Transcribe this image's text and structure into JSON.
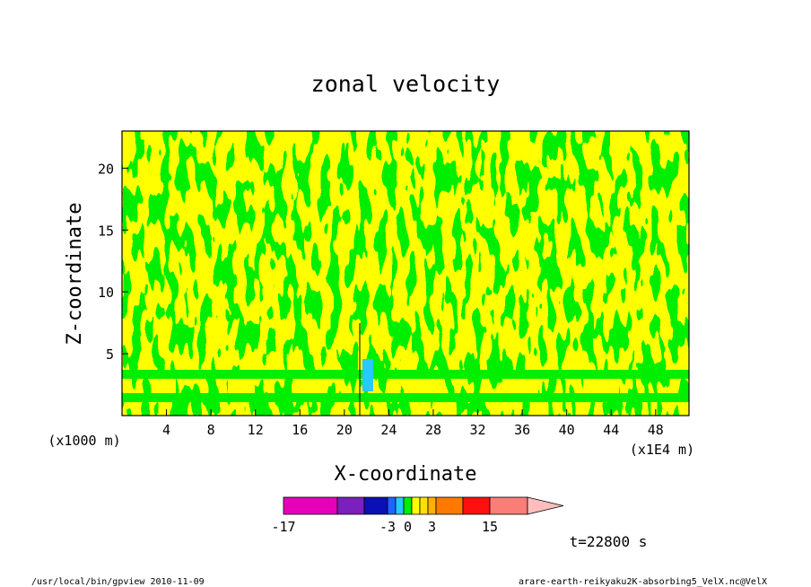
{
  "chart_data": {
    "type": "heatmap",
    "title": "zonal velocity",
    "xlabel": "X-coordinate",
    "ylabel": "Z-coordinate",
    "x_unit": "(x1E4 m)",
    "y_unit": "(x1000 m)",
    "x_ticks": [
      "4",
      "8",
      "12",
      "16",
      "20",
      "24",
      "28",
      "32",
      "36",
      "40",
      "44",
      "48"
    ],
    "y_ticks": [
      "5",
      "10",
      "15",
      "20"
    ],
    "xlim": [
      0,
      51
    ],
    "ylim": [
      0,
      23
    ],
    "dominant_levels": [
      {
        "range": "0 to 1",
        "color": "#ffff00"
      },
      {
        "range": "-1 to 0",
        "color": "#00ee00"
      }
    ],
    "colorbar": {
      "tick_labels": [
        "-17",
        "-3",
        "0",
        "3",
        "15"
      ],
      "segments": [
        {
          "color": "#e600b8",
          "weight": 3
        },
        {
          "color": "#7b1fbf",
          "weight": 1.5
        },
        {
          "color": "#0a10b4",
          "weight": 1.3
        },
        {
          "color": "#1b66ff",
          "weight": 0.45
        },
        {
          "color": "#27c9ff",
          "weight": 0.45
        },
        {
          "color": "#00ee00",
          "weight": 0.45
        },
        {
          "color": "#ffff00",
          "weight": 0.45
        },
        {
          "color": "#ffe000",
          "weight": 0.45
        },
        {
          "color": "#ffb000",
          "weight": 0.45
        },
        {
          "color": "#ff7800",
          "weight": 1.5
        },
        {
          "color": "#ff1010",
          "weight": 1.5
        },
        {
          "color": "#fa7d78",
          "weight": 2.1
        }
      ],
      "extend_color": "#ffbdbd"
    }
  },
  "time_label": "t=22800 s",
  "footer_left": "/usr/local/bin/gpview 2010-11-09",
  "footer_right": "arare-earth-reikyaku2K-absorbing5_VelX.nc@VelX"
}
